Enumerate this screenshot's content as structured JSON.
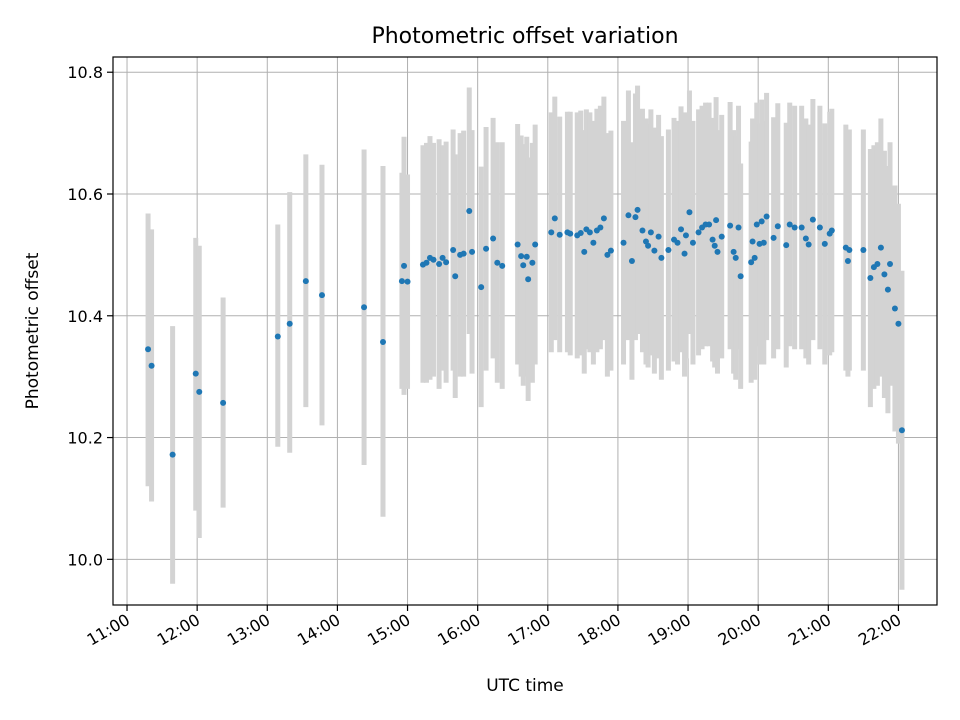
{
  "chart_data": {
    "type": "scatter",
    "title": "Photometric offset variation",
    "xlabel": "UTC time",
    "ylabel": "Photometric offset",
    "xlim": [
      10.8,
      22.55
    ],
    "ylim": [
      9.925,
      10.825
    ],
    "grid": true,
    "x_ticks": [
      11,
      12,
      13,
      14,
      15,
      16,
      17,
      18,
      19,
      20,
      21,
      22
    ],
    "x_tick_labels": [
      "11:00",
      "12:00",
      "13:00",
      "14:00",
      "15:00",
      "16:00",
      "17:00",
      "18:00",
      "19:00",
      "20:00",
      "21:00",
      "22:00"
    ],
    "y_ticks": [
      10.0,
      10.2,
      10.4,
      10.6,
      10.8
    ],
    "y_tick_labels": [
      "10.0",
      "10.2",
      "10.4",
      "10.6",
      "10.8"
    ],
    "point_color": "#1f77b4",
    "errorbar_color": "#d3d3d3",
    "series": [
      {
        "x": [
          11.3,
          11.35,
          11.65,
          11.98,
          12.03,
          12.37,
          13.15,
          13.32,
          13.55,
          13.78,
          14.38,
          14.65,
          14.92,
          14.95,
          15.0,
          15.22,
          15.27,
          15.32,
          15.37,
          15.45,
          15.5,
          15.55,
          15.65,
          15.68,
          15.75,
          15.8,
          15.88,
          15.92,
          16.05,
          16.12,
          16.22,
          16.28,
          16.35,
          16.57,
          16.62,
          16.65,
          16.7,
          16.72,
          16.78,
          16.82,
          17.05,
          17.1,
          17.17,
          17.28,
          17.32,
          17.42,
          17.47,
          17.52,
          17.55,
          17.6,
          17.65,
          17.7,
          17.75,
          17.8,
          17.85,
          17.9,
          18.08,
          18.15,
          18.2,
          18.25,
          18.28,
          18.35,
          18.4,
          18.43,
          18.47,
          18.52,
          18.58,
          18.62,
          18.72,
          18.8,
          18.85,
          18.9,
          18.95,
          18.97,
          19.02,
          19.07,
          19.15,
          19.2,
          19.25,
          19.3,
          19.35,
          19.38,
          19.4,
          19.42,
          19.48,
          19.6,
          19.65,
          19.68,
          19.72,
          19.75,
          19.9,
          19.92,
          19.95,
          19.98,
          20.02,
          20.05,
          20.08,
          20.12,
          20.22,
          20.28,
          20.4,
          20.45,
          20.52,
          20.62,
          20.68,
          20.72,
          20.78,
          20.88,
          20.95,
          21.02,
          21.05,
          21.25,
          21.28,
          21.3,
          21.5,
          21.6,
          21.65,
          21.7,
          21.75,
          21.8,
          21.85,
          21.88,
          21.95,
          22.0,
          22.05
        ],
        "y": [
          10.345,
          10.318,
          10.172,
          10.305,
          10.275,
          10.257,
          10.366,
          10.387,
          10.457,
          10.434,
          10.414,
          10.357,
          10.457,
          10.482,
          10.456,
          10.484,
          10.487,
          10.495,
          10.492,
          10.485,
          10.495,
          10.488,
          10.508,
          10.465,
          10.5,
          10.502,
          10.572,
          10.505,
          10.447,
          10.51,
          10.527,
          10.487,
          10.482,
          10.517,
          10.498,
          10.483,
          10.497,
          10.46,
          10.487,
          10.517,
          10.537,
          10.56,
          10.533,
          10.537,
          10.535,
          10.532,
          10.536,
          10.505,
          10.542,
          10.537,
          10.52,
          10.54,
          10.545,
          10.56,
          10.5,
          10.507,
          10.52,
          10.565,
          10.49,
          10.562,
          10.574,
          10.54,
          10.522,
          10.515,
          10.537,
          10.507,
          10.53,
          10.495,
          10.508,
          10.525,
          10.52,
          10.542,
          10.502,
          10.532,
          10.57,
          10.52,
          10.537,
          10.545,
          10.55,
          10.55,
          10.525,
          10.515,
          10.557,
          10.505,
          10.53,
          10.548,
          10.505,
          10.495,
          10.545,
          10.465,
          10.488,
          10.522,
          10.495,
          10.55,
          10.518,
          10.555,
          10.52,
          10.563,
          10.528,
          10.547,
          10.516,
          10.55,
          10.545,
          10.545,
          10.527,
          10.517,
          10.558,
          10.545,
          10.518,
          10.535,
          10.54,
          10.512,
          10.49,
          10.508,
          10.508,
          10.462,
          10.48,
          10.485,
          10.512,
          10.468,
          10.443,
          10.485,
          10.412,
          10.387,
          10.212
        ],
        "err_low": [
          10.12,
          10.095,
          9.96,
          10.08,
          10.035,
          10.085,
          10.185,
          10.175,
          10.25,
          10.22,
          10.155,
          10.07,
          10.28,
          10.27,
          10.28,
          10.29,
          10.29,
          10.295,
          10.3,
          10.28,
          10.31,
          10.29,
          10.31,
          10.265,
          10.3,
          10.3,
          10.37,
          10.305,
          10.25,
          10.31,
          10.33,
          10.29,
          10.28,
          10.32,
          10.3,
          10.285,
          10.3,
          10.26,
          10.29,
          10.32,
          10.34,
          10.36,
          10.34,
          10.34,
          10.335,
          10.33,
          10.335,
          10.305,
          10.345,
          10.34,
          10.32,
          10.34,
          10.345,
          10.36,
          10.3,
          10.31,
          10.32,
          10.36,
          10.295,
          10.36,
          10.37,
          10.34,
          10.32,
          10.315,
          10.335,
          10.305,
          10.33,
          10.295,
          10.31,
          10.325,
          10.32,
          10.34,
          10.3,
          10.33,
          10.37,
          10.32,
          10.335,
          10.345,
          10.35,
          10.35,
          10.325,
          10.315,
          10.355,
          10.305,
          10.33,
          10.345,
          10.305,
          10.295,
          10.345,
          10.28,
          10.29,
          10.32,
          10.295,
          10.35,
          10.32,
          10.355,
          10.32,
          10.36,
          10.33,
          10.345,
          10.315,
          10.35,
          10.345,
          10.345,
          10.33,
          10.32,
          10.36,
          10.345,
          10.32,
          10.335,
          10.34,
          10.31,
          10.3,
          10.31,
          10.31,
          10.25,
          10.28,
          10.285,
          10.3,
          10.265,
          10.24,
          10.285,
          10.21,
          10.19,
          9.95
        ],
        "err_high": [
          10.568,
          10.542,
          10.383,
          10.528,
          10.515,
          10.43,
          10.55,
          10.603,
          10.665,
          10.648,
          10.673,
          10.646,
          10.635,
          10.694,
          10.632,
          10.68,
          10.684,
          10.695,
          10.684,
          10.69,
          10.68,
          10.686,
          10.706,
          10.665,
          10.7,
          10.704,
          10.775,
          10.705,
          10.645,
          10.71,
          10.725,
          10.685,
          10.685,
          10.715,
          10.696,
          10.682,
          10.694,
          10.66,
          10.684,
          10.714,
          10.734,
          10.76,
          10.727,
          10.735,
          10.735,
          10.734,
          10.737,
          10.705,
          10.739,
          10.734,
          10.72,
          10.74,
          10.745,
          10.76,
          10.7,
          10.704,
          10.72,
          10.77,
          10.685,
          10.765,
          10.778,
          10.74,
          10.724,
          10.715,
          10.739,
          10.709,
          10.73,
          10.695,
          10.706,
          10.725,
          10.72,
          10.744,
          10.704,
          10.734,
          10.77,
          10.72,
          10.739,
          10.745,
          10.75,
          10.75,
          10.725,
          10.715,
          10.759,
          10.705,
          10.73,
          10.751,
          10.705,
          10.695,
          10.745,
          10.65,
          10.686,
          10.724,
          10.695,
          10.75,
          10.716,
          10.755,
          10.72,
          10.766,
          10.726,
          10.749,
          10.717,
          10.75,
          10.745,
          10.745,
          10.724,
          10.714,
          10.756,
          10.745,
          10.716,
          10.735,
          10.74,
          10.714,
          10.68,
          10.706,
          10.706,
          10.674,
          10.68,
          10.685,
          10.724,
          10.671,
          10.646,
          10.685,
          10.614,
          10.584,
          10.474
        ]
      }
    ]
  }
}
